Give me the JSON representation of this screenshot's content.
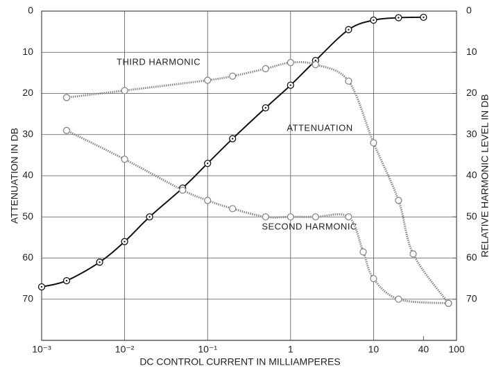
{
  "chart_data": {
    "type": "line",
    "xlabel": "DC CONTROL CURRENT IN MILLIAMPERES",
    "ylabel": "ATTENUATION IN DB",
    "y2label": "RELATIVE HARMONIC LEVEL IN DB",
    "xscale": "log",
    "xlim": [
      0.001,
      100
    ],
    "xticks": [
      {
        "value": 0.001,
        "label": "10⁻³"
      },
      {
        "value": 0.01,
        "label": "10⁻²"
      },
      {
        "value": 0.1,
        "label": "10⁻¹"
      },
      1,
      10,
      40,
      100
    ],
    "ylim": [
      80,
      0
    ],
    "yticks": [
      0,
      10,
      20,
      30,
      40,
      50,
      60,
      70
    ],
    "y2lim": [
      80,
      0
    ],
    "y2ticks": [
      0,
      10,
      20,
      30,
      40,
      50,
      60,
      70
    ],
    "grid": true,
    "annotations": [
      {
        "text": "THIRD HARMONIC",
        "x": 0.008,
        "y": 12.5
      },
      {
        "text": "ATTENUATION",
        "x": 0.9,
        "y": 28.5
      },
      {
        "text": "SECOND HARMONIC",
        "x": 0.45,
        "y": 52.5
      }
    ],
    "series": [
      {
        "name": "ATTENUATION",
        "color": "#111111",
        "axis": "y",
        "x": [
          0.001,
          0.002,
          0.005,
          0.01,
          0.02,
          0.05,
          0.1,
          0.2,
          0.5,
          1,
          2,
          5,
          10,
          20,
          40
        ],
        "values": [
          67,
          65.5,
          61,
          56,
          50,
          43,
          37,
          31,
          23.5,
          18,
          12,
          4.5,
          2.2,
          1.6,
          1.5
        ]
      },
      {
        "name": "THIRD HARMONIC",
        "color": "#888888",
        "axis": "y2",
        "x": [
          0.002,
          0.01,
          0.1,
          0.2,
          0.5,
          1,
          2,
          5,
          10,
          20,
          30,
          80
        ],
        "values": [
          21,
          19.3,
          16.8,
          15.8,
          14,
          12.5,
          13,
          17,
          32,
          46,
          59,
          71
        ]
      },
      {
        "name": "SECOND HARMONIC",
        "color": "#888888",
        "axis": "y2",
        "x": [
          0.002,
          0.01,
          0.05,
          0.1,
          0.2,
          0.5,
          1,
          2,
          5,
          7.5,
          10,
          20,
          80
        ],
        "values": [
          29,
          36,
          43.5,
          46,
          48,
          50,
          50,
          50,
          50,
          58.5,
          65,
          70,
          71
        ]
      }
    ]
  }
}
